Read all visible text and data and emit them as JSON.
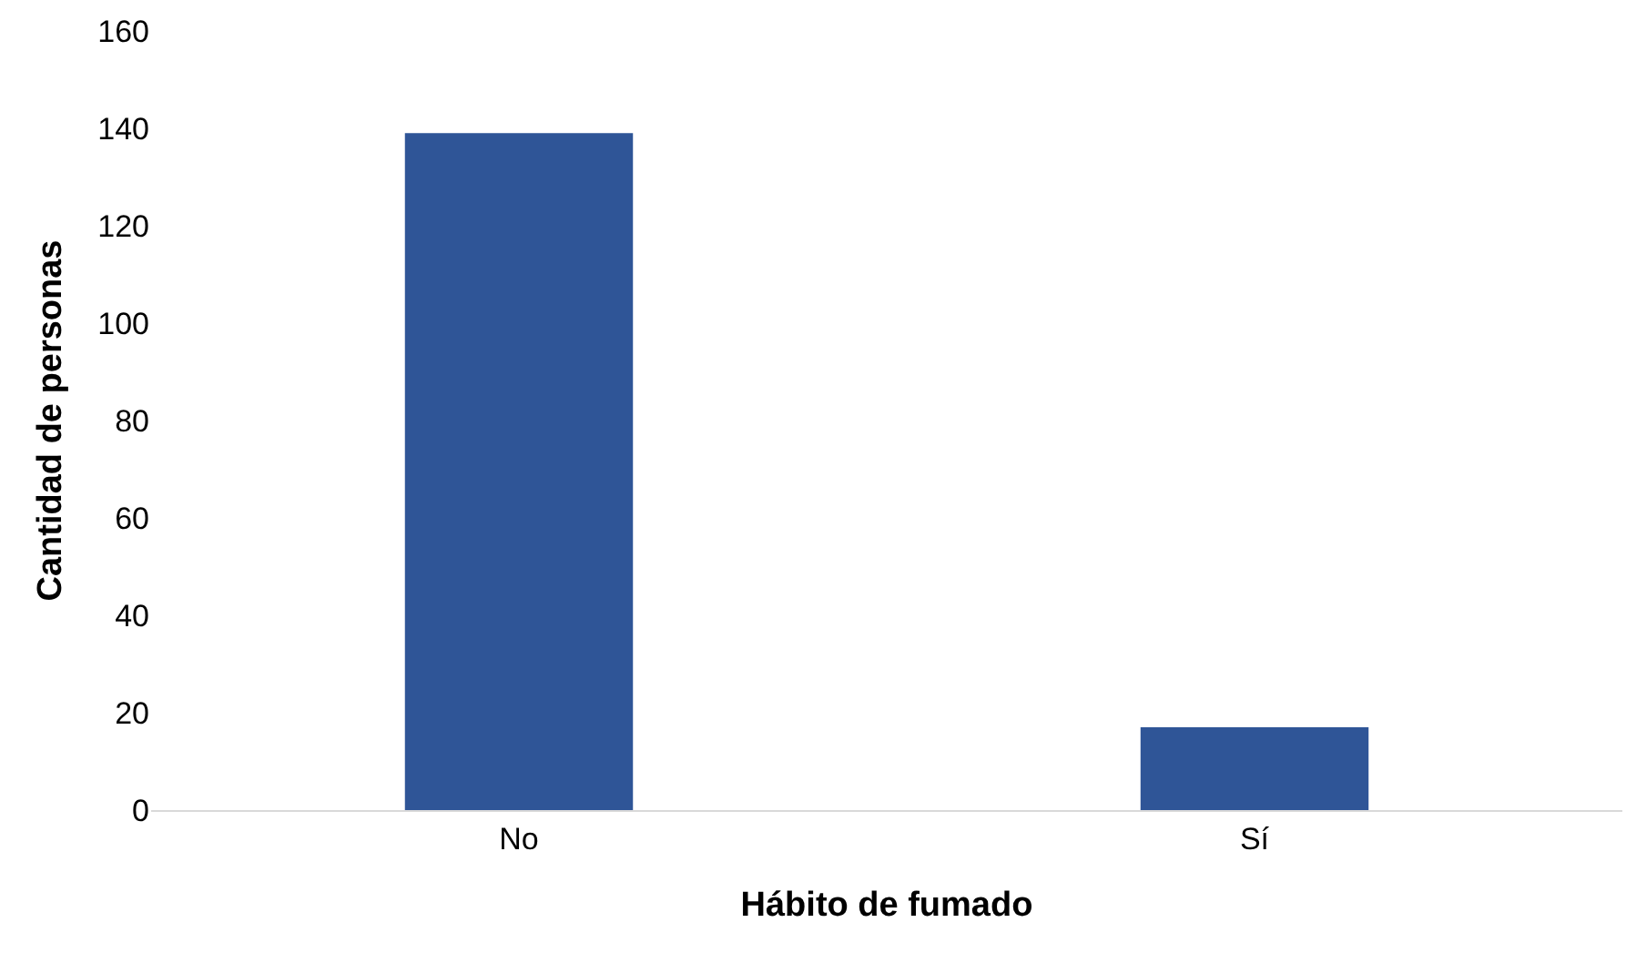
{
  "chart_data": {
    "type": "bar",
    "xlabel": "Hábito de fumado",
    "ylabel": "Cantidad de personas",
    "categories": [
      "No",
      "Sí"
    ],
    "values": [
      139,
      17
    ],
    "color": "#2f5597",
    "ylim": [
      0,
      160
    ],
    "yticks": [
      0,
      20,
      40,
      60,
      80,
      100,
      120,
      140,
      160
    ],
    "grid": false
  }
}
